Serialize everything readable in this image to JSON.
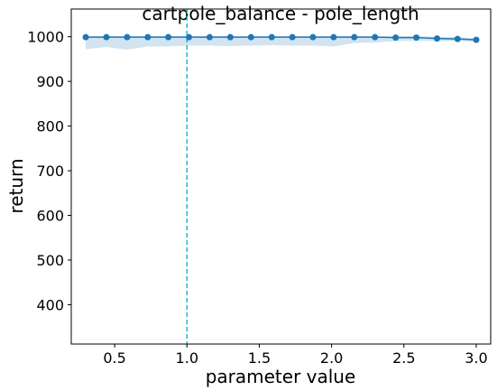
{
  "chart_data": {
    "type": "line",
    "title": "cartpole_balance - pole_length",
    "xlabel": "parameter value",
    "ylabel": "return",
    "xlim": [
      0.2,
      3.1
    ],
    "ylim": [
      312,
      1062
    ],
    "xticks": [
      0.5,
      1.0,
      1.5,
      2.0,
      2.5,
      3.0
    ],
    "xtick_labels": [
      "0.5",
      "1.0",
      "1.5",
      "2.0",
      "2.5",
      "3.0"
    ],
    "yticks": [
      400,
      500,
      600,
      700,
      800,
      900,
      1000
    ],
    "ytick_labels": [
      "400",
      "500",
      "600",
      "700",
      "800",
      "900",
      "1000"
    ],
    "grid": false,
    "reference_line": {
      "x": 1.0,
      "style": "dashed",
      "color": "#17becf"
    },
    "series": [
      {
        "color": "#1f77b4",
        "x": [
          0.3,
          0.443,
          0.586,
          0.729,
          0.871,
          1.014,
          1.157,
          1.3,
          1.443,
          1.586,
          1.729,
          1.871,
          2.014,
          2.157,
          2.3,
          2.443,
          2.586,
          2.729,
          2.871,
          3.0
        ],
        "y": [
          999,
          999,
          999,
          999,
          999,
          999,
          999,
          999,
          999,
          999,
          999,
          999,
          999,
          999,
          999,
          998,
          998,
          996,
          995,
          993
        ],
        "lower": [
          972,
          977,
          971,
          978,
          978,
          980,
          980,
          979,
          980,
          981,
          980,
          980,
          978,
          986,
          987,
          990,
          991,
          990,
          990,
          989
        ],
        "upper": [
          1001,
          1001,
          1001,
          1001,
          1001,
          1001,
          1001,
          1001,
          1001,
          1001,
          1001,
          1001,
          1001,
          1001,
          1001,
          1001,
          1001,
          1000,
          999,
          997
        ]
      }
    ]
  }
}
